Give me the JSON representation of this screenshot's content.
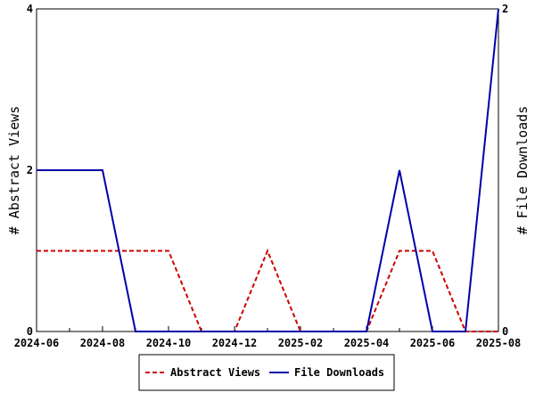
{
  "chart_data": {
    "type": "line",
    "x": [
      "2024-06",
      "2024-07",
      "2024-08",
      "2024-09",
      "2024-10",
      "2024-11",
      "2024-12",
      "2025-01",
      "2025-02",
      "2025-03",
      "2025-04",
      "2025-05",
      "2025-06",
      "2025-07",
      "2025-08"
    ],
    "x_tick_labels": [
      "2024-06",
      "2024-08",
      "2024-10",
      "2024-12",
      "2025-02",
      "2025-04",
      "2025-06",
      "2025-08"
    ],
    "series": [
      {
        "name": "Abstract Views",
        "axis": "left",
        "color": "#cc0000",
        "dash": "dashed",
        "values": [
          1,
          1,
          1,
          1,
          1,
          0,
          0,
          1,
          0,
          0,
          0,
          1,
          1,
          0,
          0
        ]
      },
      {
        "name": "File Downloads",
        "axis": "right",
        "color": "#0000aa",
        "dash": "solid",
        "values": [
          1,
          1,
          1,
          0,
          0,
          0,
          0,
          0,
          0,
          0,
          0,
          1,
          0,
          0,
          2
        ]
      }
    ],
    "ylabel": "# Abstract Views",
    "y2label": "# File Downloads",
    "ylim": [
      0,
      4
    ],
    "y2lim": [
      0,
      2
    ],
    "y_ticks": [
      "0",
      "2",
      "4"
    ],
    "y2_ticks": [
      "0",
      "2"
    ],
    "grid": false,
    "legend_position": "bottom"
  }
}
